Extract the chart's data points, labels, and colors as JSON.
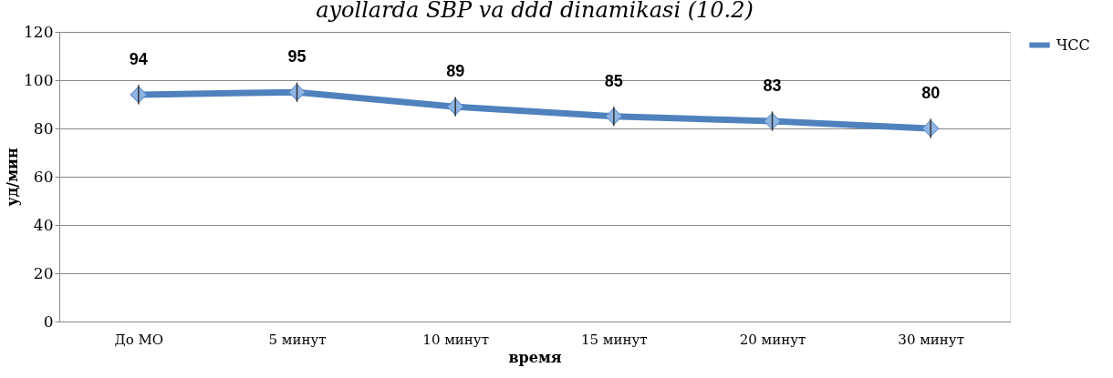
{
  "chart_data": {
    "type": "line",
    "title": "ayollarda SBP va ddd dinamikasi (10.2)",
    "xlabel": "время",
    "ylabel": "уд/мин",
    "categories": [
      "До МО",
      "5 минут",
      "10 минут",
      "15 минут",
      "20 минут",
      "30 минут"
    ],
    "series": [
      {
        "name": "ЧСС",
        "color": "#4f81bd",
        "values": [
          94,
          95,
          89,
          85,
          83,
          80
        ],
        "errors": [
          4,
          4,
          4,
          4,
          4,
          4
        ]
      }
    ],
    "ylim": [
      0,
      120
    ],
    "yticks": [
      0,
      20,
      40,
      60,
      80,
      100,
      120
    ],
    "grid": "y",
    "legend": "right",
    "marker": "diamond",
    "line_style": "solid",
    "data_labels": true
  }
}
